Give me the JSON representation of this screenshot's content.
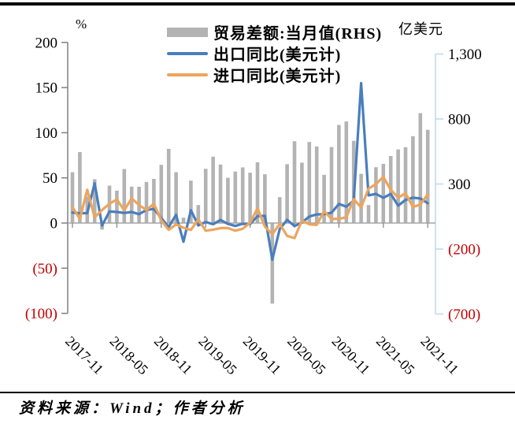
{
  "axis_units": {
    "left": "%",
    "right": "亿美元"
  },
  "legend": [
    {
      "label": "贸易差额:当月值(RHS)",
      "type": "bar",
      "color": "#b3b3b3"
    },
    {
      "label": "出口同比(美元计)",
      "type": "line",
      "color": "#4a7ebd"
    },
    {
      "label": "进口同比(美元计)",
      "type": "line",
      "color": "#eda55d"
    }
  ],
  "footer": {
    "source": "资料来源：Wind；作者分析"
  },
  "chart_data": {
    "type": "bar",
    "subtype": "combo-bar-line",
    "grid": false,
    "legend_position": "top-center",
    "negative_tick_color": "#c00000",
    "x": [
      "2017-11",
      "2017-12",
      "2018-01",
      "2018-02",
      "2018-03",
      "2018-04",
      "2018-05",
      "2018-06",
      "2018-07",
      "2018-08",
      "2018-09",
      "2018-10",
      "2018-11",
      "2018-12",
      "2019-01",
      "2019-02",
      "2019-03",
      "2019-04",
      "2019-05",
      "2019-06",
      "2019-07",
      "2019-08",
      "2019-09",
      "2019-10",
      "2019-11",
      "2019-12",
      "2020-01",
      "2020-02",
      "2020-03",
      "2020-04",
      "2020-05",
      "2020-06",
      "2020-07",
      "2020-08",
      "2020-09",
      "2020-10",
      "2020-11",
      "2020-12",
      "2021-01",
      "2021-02",
      "2021-03",
      "2021-04",
      "2021-05",
      "2021-06",
      "2021-07",
      "2021-08",
      "2021-09",
      "2021-10",
      "2021-11"
    ],
    "x_tick_labels": [
      "2017-11",
      "2018-05",
      "2018-11",
      "2019-05",
      "2019-11",
      "2020-05",
      "2020-11",
      "2021-05",
      "2021-11"
    ],
    "x_tick_every": 6,
    "left_axis": {
      "unit": "%",
      "range": [
        -100,
        200
      ],
      "ticks": [
        200,
        150,
        100,
        50,
        0,
        -50,
        -100
      ],
      "tick_labels": [
        "200",
        "150",
        "100",
        "50",
        "0",
        "(50)",
        "(100)"
      ],
      "line_color": "#808080"
    },
    "right_axis": {
      "unit": "亿美元",
      "range": [
        -700,
        1300
      ],
      "ticks": [
        1300,
        800,
        300,
        -200,
        -700
      ],
      "tick_labels": [
        "1,300",
        "800",
        "300",
        "(200)",
        "(700)"
      ],
      "line_color": "#bdd7ee"
    },
    "series": [
      {
        "id": "trade-balance-bars",
        "name": "贸易差额:当月值(RHS)",
        "type": "bar",
        "axis": "right",
        "color": "#b3b3b3",
        "values": [
          390,
          546,
          203,
          337,
          -50,
          288,
          249,
          416,
          280,
          279,
          316,
          340,
          447,
          570,
          391,
          41,
          326,
          138,
          417,
          510,
          450,
          348,
          396,
          428,
          387,
          467,
          375,
          -620,
          199,
          453,
          629,
          464,
          623,
          589,
          370,
          584,
          754,
          781,
          632,
          378,
          138,
          429,
          455,
          515,
          566,
          583,
          668,
          845,
          717
        ]
      },
      {
        "id": "export-line",
        "name": "出口同比(美元计)",
        "type": "line",
        "axis": "left",
        "color": "#4a7ebd",
        "values": [
          11.5,
          10.8,
          11.0,
          44.1,
          -2.8,
          12.7,
          12.2,
          11.2,
          12.2,
          9.8,
          14.5,
          15.6,
          5.4,
          -4.4,
          9.1,
          -20.8,
          14.2,
          -2.7,
          1.1,
          -1.3,
          3.3,
          -1.0,
          -3.2,
          -0.9,
          -1.1,
          7.6,
          7.9,
          -40.6,
          -6.6,
          3.5,
          -3.3,
          0.5,
          7.2,
          9.5,
          9.9,
          11.4,
          21.1,
          18.1,
          24.8,
          154.9,
          30.6,
          32.3,
          27.9,
          32.2,
          19.3,
          25.6,
          28.1,
          27.1,
          22.0
        ]
      },
      {
        "id": "import-line",
        "name": "进口同比(美元计)",
        "type": "line",
        "axis": "left",
        "color": "#eda55d",
        "values": [
          17.7,
          4.5,
          36.8,
          6.3,
          14.4,
          21.5,
          26.0,
          14.1,
          27.3,
          19.9,
          14.3,
          21.4,
          3.0,
          -7.6,
          -1.5,
          -5.2,
          -7.6,
          4.0,
          -8.5,
          -7.3,
          -5.6,
          -5.6,
          -8.5,
          -6.4,
          0.3,
          16.3,
          -4.0,
          -12.5,
          -0.9,
          -14.2,
          -16.7,
          2.7,
          -1.4,
          -2.1,
          13.2,
          4.7,
          4.5,
          6.5,
          26.4,
          17.3,
          38.1,
          43.1,
          51.1,
          36.7,
          28.1,
          33.1,
          17.6,
          20.6,
          31.7
        ]
      }
    ]
  }
}
